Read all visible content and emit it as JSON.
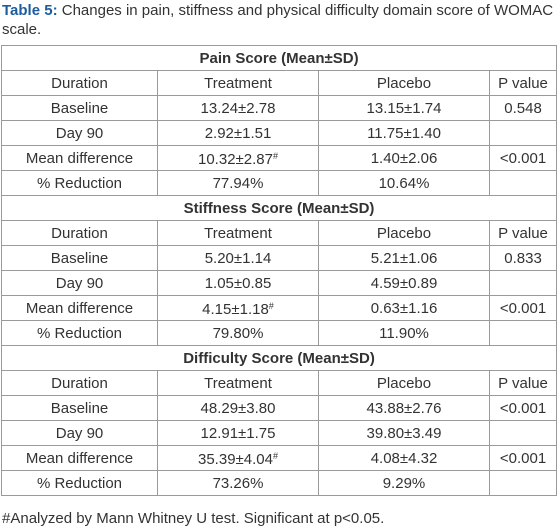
{
  "caption": {
    "label": "Table 5:",
    "text": "Changes in pain, stiffness and physical difficulty domain score of WOMAC scale."
  },
  "sections": [
    {
      "heading": "Pain Score (Mean±SD)",
      "columns": [
        "Duration",
        "Treatment",
        "Placebo",
        "P value"
      ],
      "rows": [
        [
          "Baseline",
          "13.24±2.78",
          "13.15±1.74",
          "0.548"
        ],
        [
          "Day 90",
          "2.92±1.51",
          "11.75±1.40"
        ],
        [
          "Mean difference",
          {
            "text": "10.32±2.87",
            "sup": "#"
          },
          "1.40±2.06",
          "<0.001"
        ],
        [
          "% Reduction",
          "77.94%",
          "10.64%"
        ]
      ]
    },
    {
      "heading": "Stiffness Score (Mean±SD)",
      "columns": [
        "Duration",
        "Treatment",
        "Placebo",
        "P value"
      ],
      "rows": [
        [
          "Baseline",
          "5.20±1.14",
          "5.21±1.06",
          "0.833"
        ],
        [
          "Day 90",
          "1.05±0.85",
          "4.59±0.89"
        ],
        [
          "Mean difference",
          {
            "text": "4.15±1.18",
            "sup": "#"
          },
          "0.63±1.16",
          "<0.001"
        ],
        [
          "% Reduction",
          "79.80%",
          "11.90%"
        ]
      ]
    },
    {
      "heading": "Difficulty Score (Mean±SD)",
      "columns": [
        "Duration",
        "Treatment",
        "Placebo",
        "P value"
      ],
      "rows": [
        [
          "Baseline",
          "48.29±3.80",
          "43.88±2.76",
          "<0.001"
        ],
        [
          "Day 90",
          "12.91±1.75",
          "39.80±3.49"
        ],
        [
          "Mean difference",
          {
            "text": "35.39±4.04",
            "sup": "#"
          },
          "4.08±4.32",
          "<0.001"
        ],
        [
          "% Reduction",
          "73.26%",
          "9.29%"
        ]
      ]
    }
  ],
  "footnote": "#Analyzed by Mann Whitney U test. Significant at p<0.05."
}
